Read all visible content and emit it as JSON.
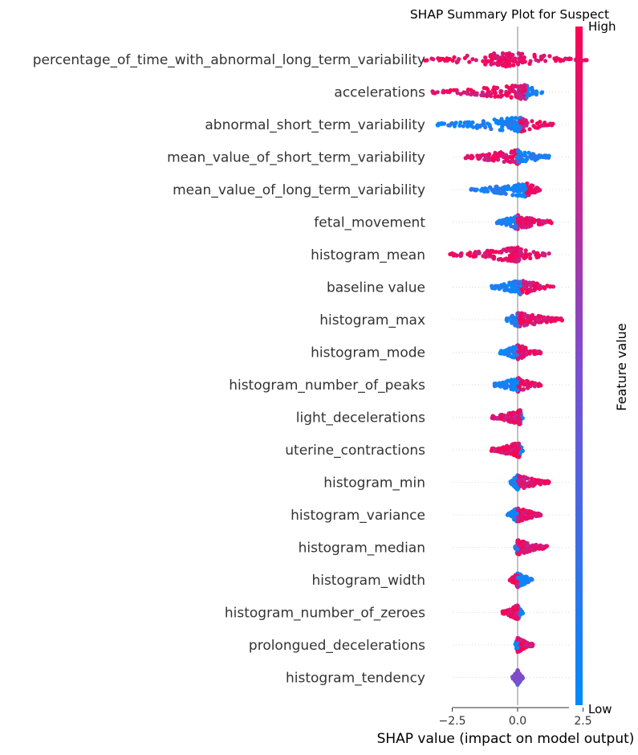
{
  "chart_data": {
    "type": "scatter",
    "subtype": "shap-beeswarm",
    "title": "SHAP Summary Plot for Suspect",
    "xlabel": "SHAP value (impact on model output)",
    "xlim": [
      -4.0,
      3.0
    ],
    "xticks": [
      -2.5,
      0.0,
      2.5
    ],
    "xtick_labels": [
      "−2.5",
      "0.0",
      "2.5"
    ],
    "colorbar": {
      "label": "Feature value",
      "high_label": "High",
      "low_label": "Low",
      "low_color": "#008bfb",
      "mid_color": "#7c4fd0",
      "high_color": "#ff0051"
    },
    "features": [
      {
        "name": "percentage_of_time_with_abnormal_long_term_variability",
        "min": -3.6,
        "max": 2.7,
        "center": -0.4,
        "neg_value": "high",
        "pos_value": "high"
      },
      {
        "name": "accelerations",
        "min": -3.5,
        "max": 1.0,
        "center": 0.3,
        "neg_value": "high",
        "pos_value": "low"
      },
      {
        "name": "abnormal_short_term_variability",
        "min": -3.3,
        "max": 1.4,
        "center": 0.1,
        "neg_value": "low",
        "pos_value": "high"
      },
      {
        "name": "mean_value_of_short_term_variability",
        "min": -2.0,
        "max": 1.2,
        "center": 0.0,
        "neg_value": "high",
        "pos_value": "low"
      },
      {
        "name": "mean_value_of_long_term_variability",
        "min": -1.8,
        "max": 0.9,
        "center": 0.3,
        "neg_value": "low",
        "pos_value": "high"
      },
      {
        "name": "fetal_movement",
        "min": -0.8,
        "max": 1.3,
        "center": 0.0,
        "neg_value": "low",
        "pos_value": "high"
      },
      {
        "name": "histogram_mean",
        "min": -2.6,
        "max": 1.2,
        "center": 0.0,
        "neg_value": "high",
        "pos_value": "high"
      },
      {
        "name": "baseline value",
        "min": -1.0,
        "max": 1.4,
        "center": 0.1,
        "neg_value": "low",
        "pos_value": "high"
      },
      {
        "name": "histogram_max",
        "min": -0.5,
        "max": 1.7,
        "center": 0.0,
        "neg_value": "low",
        "pos_value": "high"
      },
      {
        "name": "histogram_mode",
        "min": -0.7,
        "max": 0.9,
        "center": 0.0,
        "neg_value": "low",
        "pos_value": "high"
      },
      {
        "name": "histogram_number_of_peaks",
        "min": -0.9,
        "max": 0.9,
        "center": 0.0,
        "neg_value": "low",
        "pos_value": "high"
      },
      {
        "name": "light_decelerations",
        "min": -1.0,
        "max": 0.2,
        "center": 0.1,
        "neg_value": "high",
        "pos_value": "low"
      },
      {
        "name": "uterine_contractions",
        "min": -1.0,
        "max": 0.2,
        "center": 0.05,
        "neg_value": "high",
        "pos_value": "low"
      },
      {
        "name": "histogram_min",
        "min": -0.3,
        "max": 1.2,
        "center": 0.0,
        "neg_value": "low",
        "pos_value": "high"
      },
      {
        "name": "histogram_variance",
        "min": -0.4,
        "max": 0.9,
        "center": 0.0,
        "neg_value": "low",
        "pos_value": "high"
      },
      {
        "name": "histogram_median",
        "min": -0.1,
        "max": 1.2,
        "center": 0.0,
        "neg_value": "low",
        "pos_value": "high"
      },
      {
        "name": "histogram_width",
        "min": -0.3,
        "max": 0.6,
        "center": 0.0,
        "neg_value": "high",
        "pos_value": "low"
      },
      {
        "name": "histogram_number_of_zeroes",
        "min": -0.6,
        "max": 0.2,
        "center": 0.0,
        "neg_value": "high",
        "pos_value": "low"
      },
      {
        "name": "prolongued_decelerations",
        "min": -0.1,
        "max": 0.6,
        "center": 0.0,
        "neg_value": "low",
        "pos_value": "high"
      },
      {
        "name": "histogram_tendency",
        "min": -0.2,
        "max": 0.2,
        "center": 0.0,
        "neg_value": "mid",
        "pos_value": "mid"
      }
    ]
  }
}
